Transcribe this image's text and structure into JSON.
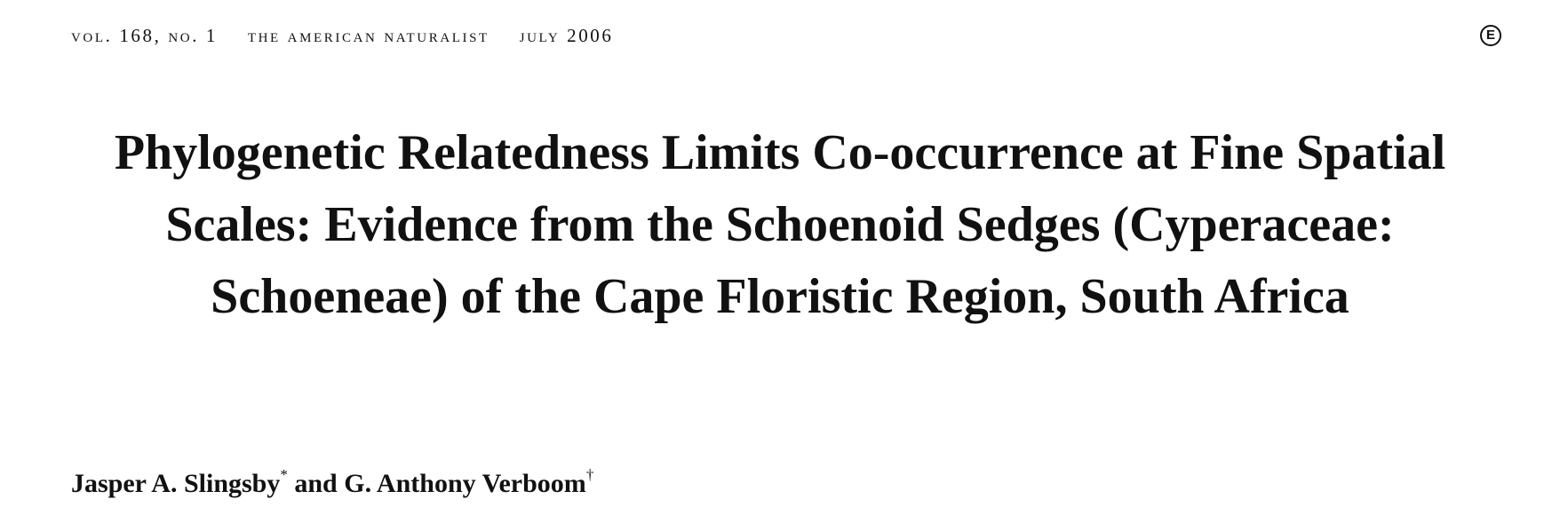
{
  "header": {
    "volume": "vol. 168, no. 1",
    "journal": "the american naturalist",
    "date": "july 2006",
    "badge": "E"
  },
  "title": {
    "lines": [
      "Phylogenetic Relatedness Limits Co-occurrence at Fine Spatial",
      "Scales: Evidence from the Schoenoid Sedges (Cyperaceae:",
      "Schoeneae) of the Cape Floristic Region, South Africa"
    ]
  },
  "authors": {
    "author1": "Jasper A. Slingsby",
    "author1_mark": "*",
    "conjunction": " and ",
    "author2": "G. Anthony Verboom",
    "author2_mark": "†"
  }
}
